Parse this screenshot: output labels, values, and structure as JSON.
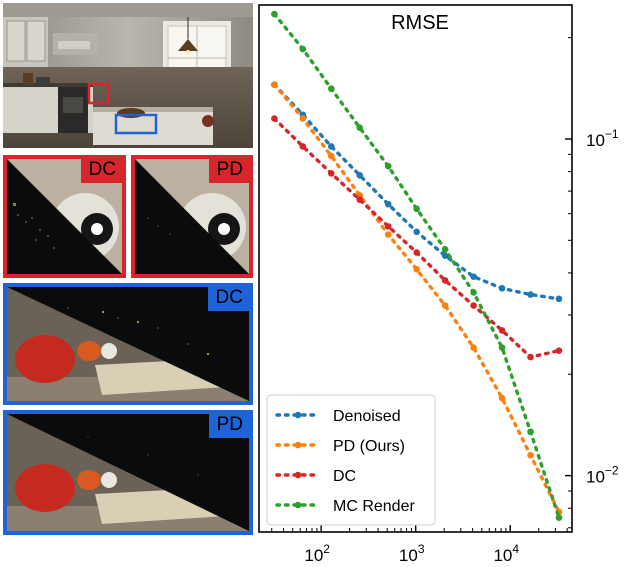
{
  "panels": {
    "inset_top_left_label": "DC",
    "inset_top_right_label": "PD",
    "inset_mid_label": "DC",
    "inset_bottom_label": "PD",
    "colors": {
      "red_frame": "#d6262b",
      "blue_frame": "#1f63d8"
    }
  },
  "chart_data": {
    "type": "line",
    "title": "RMSE",
    "xscale": "log",
    "yscale": "log",
    "xlim": [
      22,
      45000
    ],
    "ylim": [
      0.0068,
      0.25
    ],
    "x_ticks": [
      {
        "base": "10",
        "exp": "2",
        "value": 100
      },
      {
        "base": "10",
        "exp": "3",
        "value": 1000
      },
      {
        "base": "10",
        "exp": "4",
        "value": 10000
      }
    ],
    "y_ticks": [
      {
        "base": "10",
        "exp": "−1",
        "value": 0.1
      },
      {
        "base": "10",
        "exp": "−2",
        "value": 0.01
      }
    ],
    "y_axis_side": "right",
    "legend_position": "bottom-left",
    "grid": false,
    "series": [
      {
        "name": "Denoised",
        "color": "#1f77b4",
        "x": [
          32,
          64,
          128,
          256,
          512,
          1024,
          2048,
          4096,
          8192,
          16384,
          32768
        ],
        "y": [
          0.145,
          0.118,
          0.095,
          0.078,
          0.064,
          0.053,
          0.045,
          0.039,
          0.036,
          0.0345,
          0.0335
        ]
      },
      {
        "name": "PD (Ours)",
        "color": "#ff7f0e",
        "x": [
          32,
          64,
          128,
          256,
          512,
          1024,
          2048,
          4096,
          8192,
          16384,
          32768
        ],
        "y": [
          0.145,
          0.115,
          0.089,
          0.068,
          0.052,
          0.041,
          0.032,
          0.024,
          0.017,
          0.0115,
          0.0078
        ]
      },
      {
        "name": "DC",
        "color": "#d62728",
        "x": [
          32,
          64,
          128,
          256,
          512,
          1024,
          2048,
          4096,
          8192,
          16384,
          32768
        ],
        "y": [
          0.115,
          0.095,
          0.079,
          0.066,
          0.055,
          0.046,
          0.038,
          0.032,
          0.027,
          0.0225,
          0.0235
        ]
      },
      {
        "name": "MC Render",
        "color": "#2ca02c",
        "x": [
          32,
          64,
          128,
          256,
          512,
          1024,
          2048,
          4096,
          8192,
          16384,
          32768
        ],
        "y": [
          0.235,
          0.185,
          0.141,
          0.108,
          0.083,
          0.062,
          0.047,
          0.035,
          0.024,
          0.0135,
          0.0075
        ]
      }
    ]
  }
}
